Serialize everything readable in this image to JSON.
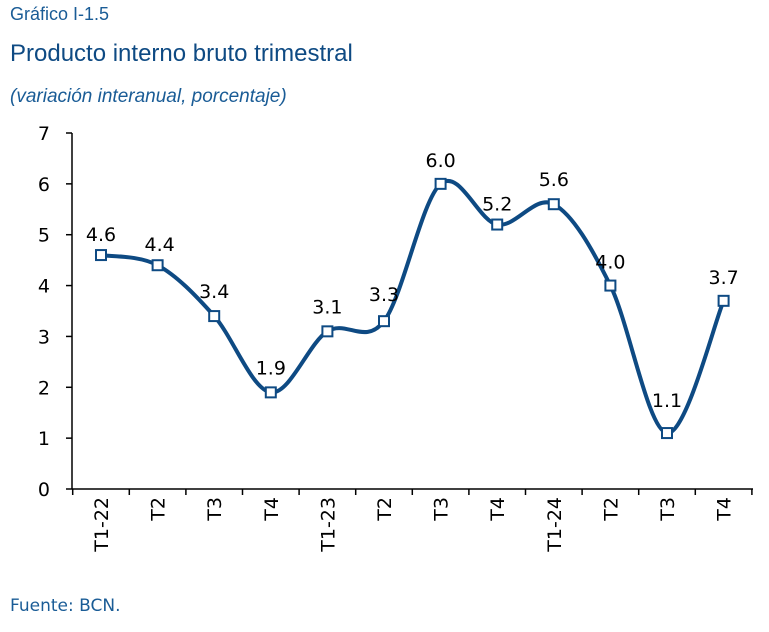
{
  "header": {
    "figure_label": "Gráfico I-1.5"
  },
  "chart_data": {
    "type": "line",
    "title": "Producto interno bruto trimestral",
    "subtitle": "(variación interanual, porcentaje)",
    "categories": [
      "T1-22",
      "T2",
      "T3",
      "T4",
      "T1-23",
      "T2",
      "T3",
      "T4",
      "T1-24",
      "T2",
      "T3",
      "T4"
    ],
    "series": [
      {
        "values": [
          4.6,
          4.4,
          3.4,
          1.9,
          3.1,
          3.3,
          6.0,
          5.2,
          5.6,
          4.0,
          1.1,
          3.7
        ]
      }
    ],
    "data_labels": [
      "4.6",
      "4.4",
      "3.4",
      "1.9",
      "3.1",
      "3.3",
      "6.0",
      "5.2",
      "5.6",
      "4.0",
      "1.1",
      "3.7"
    ],
    "y_ticks": [
      "0",
      "1",
      "2",
      "3",
      "4",
      "5",
      "6",
      "7"
    ],
    "ylim": [
      0,
      7
    ],
    "grid": false,
    "line_color": "#0e4a83",
    "marker": "square"
  },
  "footer": {
    "source": "Fuente: BCN."
  }
}
